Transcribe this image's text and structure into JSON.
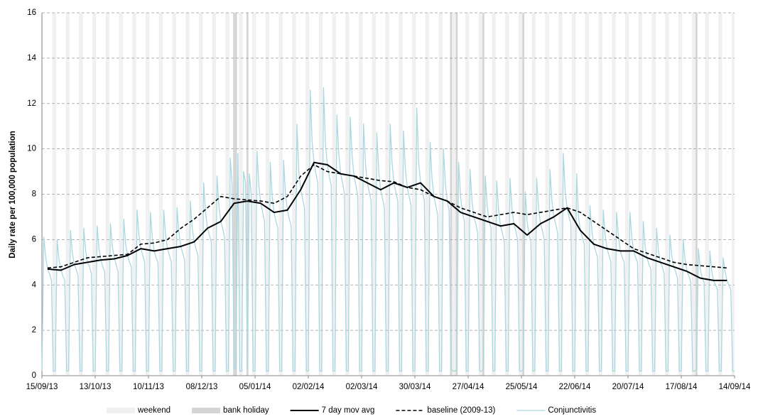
{
  "chart_data": {
    "type": "line",
    "ylabel": "Daily rate per 100,000 population",
    "xlim": [
      0,
      364
    ],
    "xticks": [
      {
        "value": 0,
        "label": "15/09/13"
      },
      {
        "value": 28,
        "label": "13/10/13"
      },
      {
        "value": 56,
        "label": "10/11/13"
      },
      {
        "value": 84,
        "label": "08/12/13"
      },
      {
        "value": 112,
        "label": "05/01/14"
      },
      {
        "value": 140,
        "label": "02/02/14"
      },
      {
        "value": 168,
        "label": "02/03/14"
      },
      {
        "value": 196,
        "label": "30/03/14"
      },
      {
        "value": 224,
        "label": "27/04/14"
      },
      {
        "value": 252,
        "label": "25/05/14"
      },
      {
        "value": 280,
        "label": "22/06/14"
      },
      {
        "value": 308,
        "label": "20/07/14"
      },
      {
        "value": 336,
        "label": "17/08/14"
      },
      {
        "value": 364,
        "label": "14/09/14"
      }
    ],
    "ylim": [
      0,
      16
    ],
    "yticks": [
      0,
      2,
      4,
      6,
      8,
      10,
      12,
      14,
      16
    ],
    "grid": true,
    "legend": "bottom",
    "bands": [
      {
        "name": "weekend",
        "color": "#f0f0f0",
        "days": [
          0,
          6,
          7,
          13,
          14,
          20,
          21,
          27,
          28,
          34,
          35,
          41,
          42,
          48,
          49,
          55,
          56,
          62,
          63,
          69,
          70,
          76,
          77,
          83,
          84,
          90,
          91,
          97,
          98,
          104,
          105,
          111,
          112,
          118,
          119,
          125,
          126,
          132,
          133,
          139,
          140,
          146,
          147,
          153,
          154,
          160,
          161,
          167,
          168,
          174,
          175,
          181,
          182,
          188,
          189,
          195,
          196,
          202,
          203,
          209,
          210,
          216,
          217,
          223,
          224,
          230,
          231,
          237,
          238,
          244,
          245,
          251,
          252,
          258,
          259,
          265,
          266,
          272,
          273,
          279,
          280,
          286,
          287,
          293,
          294,
          300,
          301,
          307,
          308,
          314,
          315,
          321,
          322,
          328,
          329,
          335,
          336,
          342,
          343,
          349,
          350,
          356,
          357,
          363,
          364
        ]
      },
      {
        "name": "bank holiday",
        "color": "#d4d4d4",
        "days": [
          101,
          102,
          108,
          215,
          218,
          232,
          253,
          344
        ]
      }
    ],
    "series": [
      {
        "name": "Conjunctivitis",
        "color": "#a8d8e2",
        "dash": false,
        "width": 1.3,
        "values": [
          0.2,
          6.1,
          5.2,
          4.7,
          4.5,
          4.2,
          0.2,
          0.2,
          6.0,
          5.1,
          4.7,
          4.4,
          4.2,
          0.2,
          0.2,
          6.4,
          5.4,
          4.9,
          4.7,
          4.4,
          0.2,
          0.2,
          6.5,
          5.5,
          5.0,
          4.8,
          4.5,
          0.2,
          0.2,
          6.6,
          5.6,
          5.1,
          4.8,
          4.6,
          0.2,
          0.2,
          6.7,
          5.7,
          5.2,
          4.9,
          4.6,
          0.2,
          0.2,
          6.9,
          5.8,
          5.3,
          5.0,
          4.8,
          0.2,
          0.2,
          7.3,
          6.2,
          5.6,
          5.3,
          5.0,
          0.2,
          0.2,
          7.2,
          6.1,
          5.5,
          5.2,
          5.0,
          0.2,
          0.2,
          7.3,
          6.2,
          5.6,
          5.3,
          5.0,
          0.2,
          0.2,
          7.4,
          6.3,
          5.7,
          5.4,
          5.1,
          0.2,
          0.2,
          7.7,
          6.5,
          5.9,
          5.6,
          5.3,
          0.2,
          0.2,
          8.5,
          7.2,
          6.5,
          6.2,
          5.9,
          0.2,
          0.2,
          8.8,
          7.5,
          6.8,
          6.5,
          6.1,
          0.2,
          0.2,
          9.6,
          8.4,
          0.3,
          0.3,
          9.8,
          0.2,
          0.2,
          9.0,
          8.5,
          0.3,
          8.9,
          8.0,
          0.2,
          0.2,
          9.9,
          8.4,
          7.6,
          7.2,
          6.8,
          0.2,
          0.2,
          9.4,
          7.9,
          7.2,
          6.8,
          6.5,
          0.2,
          0.2,
          9.5,
          8.0,
          7.3,
          6.9,
          6.6,
          0.2,
          0.2,
          11.1,
          9.0,
          8.2,
          7.8,
          7.4,
          0.2,
          0.2,
          12.6,
          10.3,
          9.4,
          8.9,
          8.5,
          0.2,
          0.2,
          12.7,
          10.2,
          9.3,
          8.8,
          8.4,
          0.2,
          0.2,
          11.5,
          9.8,
          8.9,
          8.5,
          8.0,
          0.2,
          0.2,
          11.4,
          9.7,
          8.8,
          8.4,
          7.9,
          0.2,
          0.2,
          11.1,
          9.4,
          8.5,
          8.1,
          7.7,
          0.2,
          0.2,
          10.7,
          9.0,
          8.2,
          7.8,
          7.4,
          0.2,
          0.2,
          11.1,
          9.4,
          8.5,
          8.1,
          7.7,
          0.2,
          0.2,
          10.8,
          9.1,
          8.3,
          7.9,
          7.5,
          0.2,
          0.2,
          11.8,
          9.4,
          8.5,
          8.1,
          7.7,
          0.2,
          0.2,
          10.3,
          8.7,
          7.9,
          7.5,
          7.1,
          0.2,
          0.2,
          10.0,
          8.5,
          7.7,
          7.3,
          0.3,
          0.2,
          0.2,
          0.3,
          9.4,
          7.9,
          7.2,
          6.8,
          0.2,
          0.2,
          9.1,
          7.7,
          7.0,
          6.7,
          6.3,
          0.2,
          0.2,
          0.3,
          8.8,
          7.5,
          6.8,
          6.5,
          0.2,
          0.2,
          8.6,
          7.3,
          6.6,
          6.3,
          5.9,
          0.2,
          0.2,
          8.7,
          7.4,
          6.7,
          6.4,
          6.0,
          0.2,
          0.2,
          0.3,
          8.1,
          6.8,
          6.2,
          5.9,
          0.2,
          0.2,
          8.7,
          7.4,
          6.7,
          6.4,
          6.0,
          0.2,
          0.2,
          9.1,
          7.7,
          7.0,
          6.7,
          6.3,
          0.2,
          0.2,
          9.8,
          8.1,
          7.4,
          7.0,
          6.7,
          0.2,
          0.2,
          8.9,
          7.0,
          6.4,
          6.1,
          5.8,
          0.2,
          0.2,
          7.5,
          6.4,
          5.8,
          5.5,
          5.2,
          0.2,
          0.2,
          7.3,
          6.2,
          5.6,
          5.3,
          5.0,
          0.2,
          0.2,
          7.2,
          6.1,
          5.5,
          5.2,
          5.0,
          0.2,
          0.2,
          7.2,
          6.1,
          5.5,
          5.2,
          5.0,
          0.2,
          0.2,
          6.8,
          5.7,
          5.2,
          4.9,
          4.7,
          0.2,
          0.2,
          6.5,
          5.5,
          5.0,
          4.8,
          4.5,
          0.2,
          0.2,
          6.2,
          5.3,
          4.8,
          4.6,
          4.3,
          0.2,
          0.2,
          6.0,
          5.1,
          4.6,
          4.4,
          4.1,
          0.2,
          0.2,
          0.3,
          5.6,
          4.7,
          4.3,
          4.1,
          0.2,
          0.2,
          5.5,
          4.6,
          4.2,
          4.0,
          3.8,
          0.2,
          0.2,
          5.2,
          4.6,
          4.2,
          4.0,
          3.8,
          0.2,
          0.2
        ]
      },
      {
        "name": "baseline (2009-13)",
        "color": "#000000",
        "dash": true,
        "width": 1.6,
        "x": [
          3,
          10,
          17,
          24,
          31,
          38,
          45,
          52,
          59,
          66,
          73,
          80,
          87,
          94,
          101,
          108,
          115,
          122,
          129,
          136,
          143,
          150,
          157,
          164,
          171,
          178,
          185,
          192,
          199,
          206,
          213,
          220,
          227,
          234,
          241,
          248,
          255,
          262,
          269,
          276,
          283,
          290,
          297,
          304,
          311,
          318,
          325,
          332,
          339,
          346,
          353,
          360
        ],
        "values": [
          4.75,
          4.8,
          5.0,
          5.2,
          5.25,
          5.3,
          5.35,
          5.8,
          5.85,
          6.0,
          6.5,
          6.9,
          7.4,
          7.9,
          7.8,
          7.75,
          7.7,
          7.6,
          7.9,
          8.8,
          9.3,
          9.0,
          8.9,
          8.8,
          8.7,
          8.6,
          8.55,
          8.3,
          8.2,
          7.9,
          7.7,
          7.4,
          7.2,
          7.0,
          7.1,
          7.2,
          7.1,
          7.2,
          7.3,
          7.4,
          7.2,
          6.8,
          6.4,
          6.0,
          5.6,
          5.4,
          5.2,
          5.0,
          4.9,
          4.85,
          4.8,
          4.75
        ]
      },
      {
        "name": "7 day mov avg",
        "color": "#000000",
        "dash": false,
        "width": 2,
        "x": [
          3,
          10,
          17,
          24,
          31,
          38,
          45,
          52,
          59,
          66,
          73,
          80,
          87,
          94,
          101,
          108,
          115,
          122,
          129,
          136,
          143,
          150,
          157,
          164,
          171,
          178,
          185,
          192,
          199,
          206,
          213,
          220,
          227,
          234,
          241,
          248,
          255,
          262,
          269,
          276,
          283,
          290,
          297,
          304,
          311,
          318,
          325,
          332,
          339,
          346,
          353,
          360
        ],
        "values": [
          4.7,
          4.65,
          4.9,
          5.0,
          5.1,
          5.15,
          5.3,
          5.6,
          5.5,
          5.6,
          5.7,
          5.9,
          6.5,
          6.8,
          7.6,
          7.7,
          7.6,
          7.2,
          7.3,
          8.2,
          9.4,
          9.3,
          8.9,
          8.8,
          8.5,
          8.2,
          8.5,
          8.3,
          8.5,
          7.9,
          7.7,
          7.2,
          7.0,
          6.8,
          6.6,
          6.7,
          6.2,
          6.7,
          7.0,
          7.4,
          6.4,
          5.8,
          5.6,
          5.5,
          5.5,
          5.2,
          5.0,
          4.8,
          4.6,
          4.3,
          4.2,
          4.2
        ]
      }
    ]
  }
}
